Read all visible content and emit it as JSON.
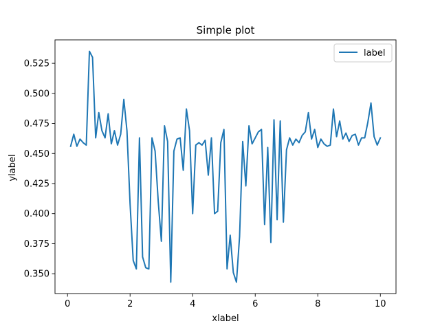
{
  "chart_data": {
    "type": "line",
    "title": "Simple plot",
    "xlabel": "xlabel",
    "ylabel": "ylabel",
    "xlim": [
      -0.4,
      10.5
    ],
    "ylim": [
      0.3335,
      0.5445
    ],
    "xticks": [
      0,
      2,
      4,
      6,
      8,
      10
    ],
    "xtick_labels": [
      "0",
      "2",
      "4",
      "6",
      "8",
      "10"
    ],
    "yticks": [
      0.35,
      0.375,
      0.4,
      0.425,
      0.45,
      0.475,
      0.5,
      0.525
    ],
    "ytick_labels": [
      "0.350",
      "0.375",
      "0.400",
      "0.425",
      "0.450",
      "0.475",
      "0.500",
      "0.525"
    ],
    "grid": false,
    "legend_position": "top-right",
    "series": [
      {
        "name": "label",
        "color": "#1f77b4",
        "x": [
          0.1,
          0.2,
          0.3,
          0.4,
          0.5,
          0.6,
          0.7,
          0.8,
          0.9,
          1.0,
          1.1,
          1.2,
          1.3,
          1.4,
          1.5,
          1.6,
          1.7,
          1.8,
          1.9,
          2.0,
          2.1,
          2.2,
          2.3,
          2.4,
          2.5,
          2.6,
          2.7,
          2.8,
          2.9,
          3.0,
          3.1,
          3.2,
          3.3,
          3.4,
          3.5,
          3.6,
          3.7,
          3.8,
          3.9,
          4.0,
          4.1,
          4.2,
          4.3,
          4.4,
          4.5,
          4.6,
          4.7,
          4.8,
          4.9,
          5.0,
          5.1,
          5.2,
          5.3,
          5.4,
          5.5,
          5.6,
          5.7,
          5.8,
          5.9,
          6.0,
          6.1,
          6.2,
          6.3,
          6.4,
          6.5,
          6.6,
          6.7,
          6.8,
          6.9,
          7.0,
          7.1,
          7.2,
          7.3,
          7.4,
          7.5,
          7.6,
          7.7,
          7.8,
          7.9,
          8.0,
          8.1,
          8.2,
          8.3,
          8.4,
          8.5,
          8.6,
          8.7,
          8.8,
          8.9,
          9.0,
          9.1,
          9.2,
          9.3,
          9.4,
          9.5,
          9.6,
          9.7,
          9.8,
          9.9,
          10.0
        ],
        "y": [
          0.456,
          0.466,
          0.456,
          0.462,
          0.459,
          0.457,
          0.535,
          0.53,
          0.463,
          0.484,
          0.469,
          0.463,
          0.483,
          0.458,
          0.469,
          0.457,
          0.466,
          0.495,
          0.469,
          0.408,
          0.361,
          0.354,
          0.463,
          0.364,
          0.355,
          0.354,
          0.463,
          0.452,
          0.41,
          0.377,
          0.473,
          0.46,
          0.343,
          0.452,
          0.462,
          0.463,
          0.436,
          0.487,
          0.469,
          0.4,
          0.457,
          0.459,
          0.457,
          0.461,
          0.432,
          0.463,
          0.4,
          0.402,
          0.459,
          0.47,
          0.354,
          0.382,
          0.351,
          0.343,
          0.381,
          0.46,
          0.423,
          0.473,
          0.458,
          0.463,
          0.468,
          0.47,
          0.391,
          0.455,
          0.376,
          0.478,
          0.395,
          0.477,
          0.393,
          0.453,
          0.463,
          0.457,
          0.462,
          0.459,
          0.465,
          0.468,
          0.484,
          0.462,
          0.47,
          0.455,
          0.462,
          0.458,
          0.456,
          0.457,
          0.487,
          0.464,
          0.477,
          0.462,
          0.467,
          0.46,
          0.465,
          0.466,
          0.457,
          0.463,
          0.463,
          0.476,
          0.492,
          0.464,
          0.457,
          0.463
        ]
      }
    ]
  }
}
